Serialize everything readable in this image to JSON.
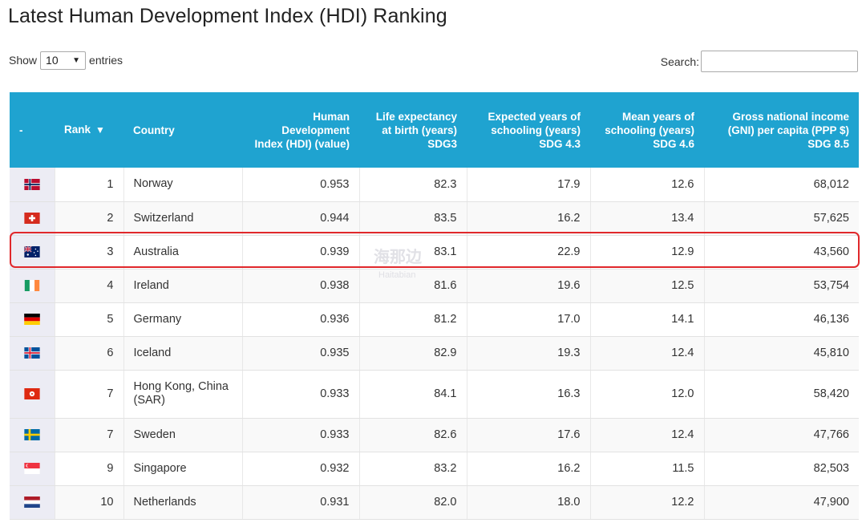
{
  "title": "Latest Human Development Index (HDI) Ranking",
  "controls": {
    "show_label": "Show",
    "entries_value": "10",
    "entries_label": "entries",
    "search_label": "Search:",
    "search_value": ""
  },
  "table": {
    "headers": {
      "flag": "-",
      "rank": "Rank",
      "country": "Country",
      "hdi": "Human Development Index (HDI) (value)",
      "life": "Life expectancy at birth (years) SDG3",
      "expected": "Expected years of schooling (years) SDG 4.3",
      "mean": "Mean years of schooling (years) SDG 4.6",
      "gni": "Gross national income (GNI) per capita (PPP $) SDG 8.5"
    },
    "sort_indicator": "▼",
    "rows": [
      {
        "flag": "norway-flag-icon",
        "rank": "1",
        "country": "Norway",
        "hdi": "0.953",
        "life": "82.3",
        "expected": "17.9",
        "mean": "12.6",
        "gni": "68,012"
      },
      {
        "flag": "switzerland-flag-icon",
        "rank": "2",
        "country": "Switzerland",
        "hdi": "0.944",
        "life": "83.5",
        "expected": "16.2",
        "mean": "13.4",
        "gni": "57,625"
      },
      {
        "flag": "australia-flag-icon",
        "rank": "3",
        "country": "Australia",
        "hdi": "0.939",
        "life": "83.1",
        "expected": "22.9",
        "mean": "12.9",
        "gni": "43,560"
      },
      {
        "flag": "ireland-flag-icon",
        "rank": "4",
        "country": "Ireland",
        "hdi": "0.938",
        "life": "81.6",
        "expected": "19.6",
        "mean": "12.5",
        "gni": "53,754"
      },
      {
        "flag": "germany-flag-icon",
        "rank": "5",
        "country": "Germany",
        "hdi": "0.936",
        "life": "81.2",
        "expected": "17.0",
        "mean": "14.1",
        "gni": "46,136"
      },
      {
        "flag": "iceland-flag-icon",
        "rank": "6",
        "country": "Iceland",
        "hdi": "0.935",
        "life": "82.9",
        "expected": "19.3",
        "mean": "12.4",
        "gni": "45,810"
      },
      {
        "flag": "hong-kong-flag-icon",
        "rank": "7",
        "country": "Hong Kong, China (SAR)",
        "hdi": "0.933",
        "life": "84.1",
        "expected": "16.3",
        "mean": "12.0",
        "gni": "58,420"
      },
      {
        "flag": "sweden-flag-icon",
        "rank": "7",
        "country": "Sweden",
        "hdi": "0.933",
        "life": "82.6",
        "expected": "17.6",
        "mean": "12.4",
        "gni": "47,766"
      },
      {
        "flag": "singapore-flag-icon",
        "rank": "9",
        "country": "Singapore",
        "hdi": "0.932",
        "life": "83.2",
        "expected": "16.2",
        "mean": "11.5",
        "gni": "82,503"
      },
      {
        "flag": "netherlands-flag-icon",
        "rank": "10",
        "country": "Netherlands",
        "hdi": "0.931",
        "life": "82.0",
        "expected": "18.0",
        "mean": "12.2",
        "gni": "47,900"
      }
    ]
  },
  "colors": {
    "header_bg": "#1fa3d0",
    "highlight_border": "#e0282b"
  },
  "watermark": {
    "text": "海那边",
    "sub": "Haitabian"
  }
}
